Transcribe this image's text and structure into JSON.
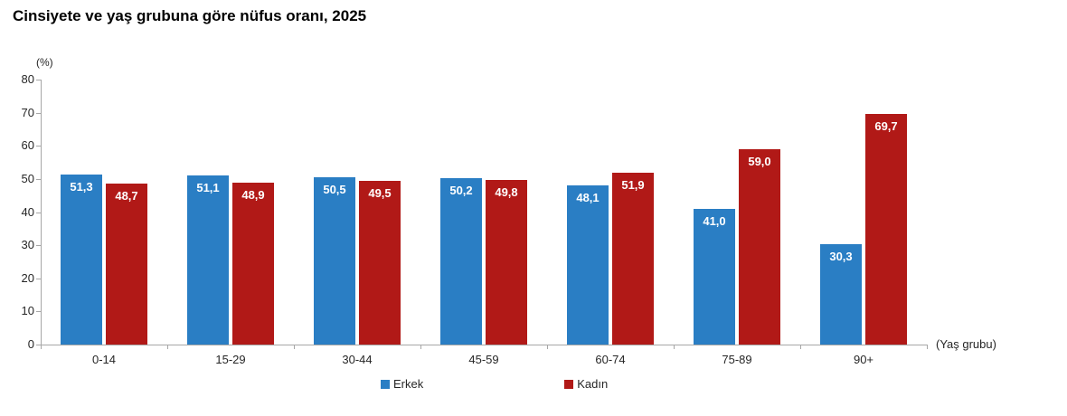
{
  "chart_data": {
    "type": "bar",
    "title": "Cinsiyete ve yaş grubuna göre nüfus oranı, 2025",
    "unit_label": "(%)",
    "xlabel": "(Yaş grubu)",
    "categories": [
      "0-14",
      "15-29",
      "30-44",
      "45-59",
      "60-74",
      "75-89",
      "90+"
    ],
    "series": [
      {
        "name": "Erkek",
        "color": "#2a7ec4",
        "values": [
          51.3,
          51.1,
          50.5,
          50.2,
          48.1,
          41.0,
          30.3
        ],
        "labels": [
          "51,3",
          "51,1",
          "50,5",
          "50,2",
          "48,1",
          "41,0",
          "30,3"
        ]
      },
      {
        "name": "Kadın",
        "color": "#b11917",
        "values": [
          48.7,
          48.9,
          49.5,
          49.8,
          51.9,
          59.0,
          69.7
        ],
        "labels": [
          "48,7",
          "48,9",
          "49,5",
          "49,8",
          "51,9",
          "59,0",
          "69,7"
        ]
      }
    ],
    "ylim": [
      0,
      80
    ],
    "yticks": [
      0,
      10,
      20,
      30,
      40,
      50,
      60,
      70,
      80
    ],
    "ytick_labels": [
      "0",
      "10",
      "20",
      "30",
      "40",
      "50",
      "60",
      "70",
      "80"
    ],
    "axis_color": "#a7a7a7",
    "value_label_color": "#ffffff",
    "grid": "off",
    "legend_position": "bottom"
  }
}
